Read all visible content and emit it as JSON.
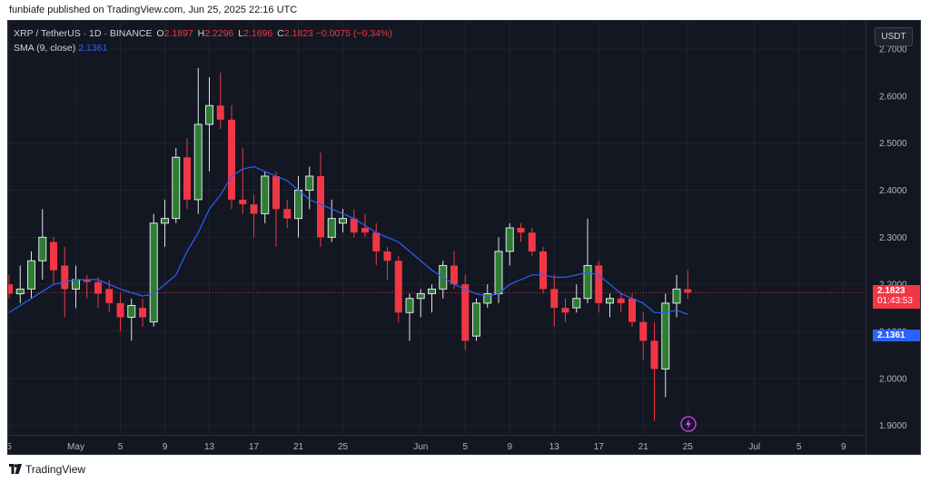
{
  "header": {
    "published": "funbiafe published on TradingView.com, Jun 25, 2025 22:16 UTC"
  },
  "legend": {
    "symbol": "XRP / TetherUS · 1D · BINANCE",
    "o_label": "O",
    "o_value": "2.1897",
    "h_label": "H",
    "h_value": "2.2296",
    "l_label": "L",
    "l_value": "2.1696",
    "c_label": "C",
    "c_value": "2.1823",
    "change": "−0.0075 (−0.34%)",
    "sma_label": "SMA (9, close)",
    "sma_value": "2.1361"
  },
  "currency_button": "USDT",
  "price_tags": {
    "last_price": "2.1823",
    "countdown": "01:43:53",
    "sma": "2.1361"
  },
  "footer": {
    "brand": "TradingView"
  },
  "colors": {
    "up": "#26a69a",
    "up_body": "#2e7d32",
    "down": "#f23645",
    "sma": "#2962ff",
    "background": "#131722"
  },
  "chart_data": {
    "type": "candlestick",
    "ylim": [
      1.88,
      2.76
    ],
    "y_ticks": [
      "2.7000",
      "2.6000",
      "2.5000",
      "2.4000",
      "2.3000",
      "2.2000",
      "2.1000",
      "2.0000",
      "1.9000"
    ],
    "y_tick_values": [
      2.7,
      2.6,
      2.5,
      2.4,
      2.3,
      2.2,
      2.1,
      2.0,
      1.9
    ],
    "x_ticks": [
      {
        "label": "5",
        "day": 0
      },
      {
        "label": "May",
        "day": 6
      },
      {
        "label": "5",
        "day": 10
      },
      {
        "label": "9",
        "day": 14
      },
      {
        "label": "13",
        "day": 18
      },
      {
        "label": "17",
        "day": 22
      },
      {
        "label": "21",
        "day": 26
      },
      {
        "label": "25",
        "day": 30
      },
      {
        "label": "Jun",
        "day": 37
      },
      {
        "label": "5",
        "day": 41
      },
      {
        "label": "9",
        "day": 45
      },
      {
        "label": "13",
        "day": 49
      },
      {
        "label": "17",
        "day": 53
      },
      {
        "label": "21",
        "day": 57
      },
      {
        "label": "25",
        "day": 61
      },
      {
        "label": "Jul",
        "day": 67
      },
      {
        "label": "5",
        "day": 71
      },
      {
        "label": "9",
        "day": 75
      }
    ],
    "candles": [
      {
        "day": 0,
        "o": 2.2,
        "h": 2.22,
        "l": 2.17,
        "c": 2.18
      },
      {
        "day": 1,
        "o": 2.18,
        "h": 2.24,
        "l": 2.16,
        "c": 2.19
      },
      {
        "day": 2,
        "o": 2.19,
        "h": 2.27,
        "l": 2.17,
        "c": 2.25
      },
      {
        "day": 3,
        "o": 2.25,
        "h": 2.36,
        "l": 2.21,
        "c": 2.3
      },
      {
        "day": 4,
        "o": 2.29,
        "h": 2.3,
        "l": 2.2,
        "c": 2.23
      },
      {
        "day": 5,
        "o": 2.24,
        "h": 2.28,
        "l": 2.13,
        "c": 2.19
      },
      {
        "day": 6,
        "o": 2.19,
        "h": 2.24,
        "l": 2.15,
        "c": 2.21
      },
      {
        "day": 7,
        "o": 2.21,
        "h": 2.22,
        "l": 2.17,
        "c": 2.205
      },
      {
        "day": 8,
        "o": 2.205,
        "h": 2.215,
        "l": 2.15,
        "c": 2.18
      },
      {
        "day": 9,
        "o": 2.19,
        "h": 2.21,
        "l": 2.14,
        "c": 2.16
      },
      {
        "day": 10,
        "o": 2.16,
        "h": 2.18,
        "l": 2.1,
        "c": 2.13
      },
      {
        "day": 11,
        "o": 2.13,
        "h": 2.17,
        "l": 2.08,
        "c": 2.155
      },
      {
        "day": 12,
        "o": 2.15,
        "h": 2.17,
        "l": 2.11,
        "c": 2.13
      },
      {
        "day": 13,
        "o": 2.12,
        "h": 2.35,
        "l": 2.11,
        "c": 2.33
      },
      {
        "day": 14,
        "o": 2.33,
        "h": 2.38,
        "l": 2.28,
        "c": 2.34
      },
      {
        "day": 15,
        "o": 2.34,
        "h": 2.49,
        "l": 2.33,
        "c": 2.47
      },
      {
        "day": 16,
        "o": 2.47,
        "h": 2.51,
        "l": 2.36,
        "c": 2.38
      },
      {
        "day": 17,
        "o": 2.38,
        "h": 2.66,
        "l": 2.35,
        "c": 2.54
      },
      {
        "day": 18,
        "o": 2.54,
        "h": 2.64,
        "l": 2.44,
        "c": 2.58
      },
      {
        "day": 19,
        "o": 2.58,
        "h": 2.65,
        "l": 2.53,
        "c": 2.55
      },
      {
        "day": 20,
        "o": 2.55,
        "h": 2.58,
        "l": 2.36,
        "c": 2.38
      },
      {
        "day": 21,
        "o": 2.38,
        "h": 2.49,
        "l": 2.35,
        "c": 2.37
      },
      {
        "day": 22,
        "o": 2.37,
        "h": 2.39,
        "l": 2.3,
        "c": 2.35
      },
      {
        "day": 23,
        "o": 2.35,
        "h": 2.44,
        "l": 2.33,
        "c": 2.43
      },
      {
        "day": 24,
        "o": 2.43,
        "h": 2.44,
        "l": 2.28,
        "c": 2.36
      },
      {
        "day": 25,
        "o": 2.36,
        "h": 2.38,
        "l": 2.32,
        "c": 2.34
      },
      {
        "day": 26,
        "o": 2.34,
        "h": 2.43,
        "l": 2.3,
        "c": 2.4
      },
      {
        "day": 27,
        "o": 2.4,
        "h": 2.45,
        "l": 2.36,
        "c": 2.43
      },
      {
        "day": 28,
        "o": 2.43,
        "h": 2.48,
        "l": 2.28,
        "c": 2.3
      },
      {
        "day": 29,
        "o": 2.3,
        "h": 2.38,
        "l": 2.29,
        "c": 2.34
      },
      {
        "day": 30,
        "o": 2.33,
        "h": 2.36,
        "l": 2.31,
        "c": 2.34
      },
      {
        "day": 31,
        "o": 2.34,
        "h": 2.36,
        "l": 2.3,
        "c": 2.31
      },
      {
        "day": 32,
        "o": 2.32,
        "h": 2.35,
        "l": 2.3,
        "c": 2.31
      },
      {
        "day": 33,
        "o": 2.31,
        "h": 2.33,
        "l": 2.24,
        "c": 2.27
      },
      {
        "day": 34,
        "o": 2.27,
        "h": 2.28,
        "l": 2.21,
        "c": 2.25
      },
      {
        "day": 35,
        "o": 2.25,
        "h": 2.26,
        "l": 2.12,
        "c": 2.14
      },
      {
        "day": 36,
        "o": 2.14,
        "h": 2.18,
        "l": 2.08,
        "c": 2.17
      },
      {
        "day": 37,
        "o": 2.17,
        "h": 2.19,
        "l": 2.13,
        "c": 2.18
      },
      {
        "day": 38,
        "o": 2.18,
        "h": 2.2,
        "l": 2.14,
        "c": 2.19
      },
      {
        "day": 39,
        "o": 2.19,
        "h": 2.25,
        "l": 2.17,
        "c": 2.24
      },
      {
        "day": 40,
        "o": 2.24,
        "h": 2.27,
        "l": 2.19,
        "c": 2.2
      },
      {
        "day": 41,
        "o": 2.2,
        "h": 2.22,
        "l": 2.06,
        "c": 2.08
      },
      {
        "day": 42,
        "o": 2.09,
        "h": 2.17,
        "l": 2.08,
        "c": 2.16
      },
      {
        "day": 43,
        "o": 2.16,
        "h": 2.2,
        "l": 2.15,
        "c": 2.18
      },
      {
        "day": 44,
        "o": 2.18,
        "h": 2.3,
        "l": 2.16,
        "c": 2.27
      },
      {
        "day": 45,
        "o": 2.27,
        "h": 2.33,
        "l": 2.24,
        "c": 2.32
      },
      {
        "day": 46,
        "o": 2.32,
        "h": 2.33,
        "l": 2.29,
        "c": 2.31
      },
      {
        "day": 47,
        "o": 2.31,
        "h": 2.32,
        "l": 2.26,
        "c": 2.27
      },
      {
        "day": 48,
        "o": 2.27,
        "h": 2.28,
        "l": 2.18,
        "c": 2.19
      },
      {
        "day": 49,
        "o": 2.19,
        "h": 2.22,
        "l": 2.11,
        "c": 2.15
      },
      {
        "day": 50,
        "o": 2.15,
        "h": 2.17,
        "l": 2.12,
        "c": 2.14
      },
      {
        "day": 51,
        "o": 2.15,
        "h": 2.2,
        "l": 2.14,
        "c": 2.17
      },
      {
        "day": 52,
        "o": 2.17,
        "h": 2.34,
        "l": 2.16,
        "c": 2.24
      },
      {
        "day": 53,
        "o": 2.24,
        "h": 2.25,
        "l": 2.14,
        "c": 2.16
      },
      {
        "day": 54,
        "o": 2.16,
        "h": 2.18,
        "l": 2.13,
        "c": 2.17
      },
      {
        "day": 55,
        "o": 2.17,
        "h": 2.18,
        "l": 2.14,
        "c": 2.16
      },
      {
        "day": 56,
        "o": 2.17,
        "h": 2.18,
        "l": 2.11,
        "c": 2.12
      },
      {
        "day": 57,
        "o": 2.12,
        "h": 2.14,
        "l": 2.04,
        "c": 2.08
      },
      {
        "day": 58,
        "o": 2.08,
        "h": 2.12,
        "l": 1.91,
        "c": 2.02
      },
      {
        "day": 59,
        "o": 2.02,
        "h": 2.18,
        "l": 1.96,
        "c": 2.16
      },
      {
        "day": 60,
        "o": 2.16,
        "h": 2.22,
        "l": 2.13,
        "c": 2.19
      },
      {
        "day": 61,
        "o": 2.1897,
        "h": 2.2296,
        "l": 2.1696,
        "c": 2.1823
      }
    ],
    "sma": {
      "name": "SMA (9, close)",
      "points": [
        {
          "day": 0,
          "v": 2.14
        },
        {
          "day": 2,
          "v": 2.17
        },
        {
          "day": 4,
          "v": 2.2
        },
        {
          "day": 6,
          "v": 2.21
        },
        {
          "day": 8,
          "v": 2.21
        },
        {
          "day": 10,
          "v": 2.19
        },
        {
          "day": 12,
          "v": 2.175
        },
        {
          "day": 13,
          "v": 2.18
        },
        {
          "day": 14,
          "v": 2.2
        },
        {
          "day": 15,
          "v": 2.22
        },
        {
          "day": 16,
          "v": 2.27
        },
        {
          "day": 17,
          "v": 2.31
        },
        {
          "day": 18,
          "v": 2.36
        },
        {
          "day": 19,
          "v": 2.39
        },
        {
          "day": 20,
          "v": 2.43
        },
        {
          "day": 21,
          "v": 2.445
        },
        {
          "day": 22,
          "v": 2.45
        },
        {
          "day": 23,
          "v": 2.44
        },
        {
          "day": 24,
          "v": 2.43
        },
        {
          "day": 25,
          "v": 2.42
        },
        {
          "day": 26,
          "v": 2.4
        },
        {
          "day": 27,
          "v": 2.38
        },
        {
          "day": 28,
          "v": 2.37
        },
        {
          "day": 29,
          "v": 2.36
        },
        {
          "day": 30,
          "v": 2.35
        },
        {
          "day": 31,
          "v": 2.34
        },
        {
          "day": 32,
          "v": 2.325
        },
        {
          "day": 33,
          "v": 2.31
        },
        {
          "day": 34,
          "v": 2.3
        },
        {
          "day": 35,
          "v": 2.29
        },
        {
          "day": 36,
          "v": 2.27
        },
        {
          "day": 37,
          "v": 2.25
        },
        {
          "day": 38,
          "v": 2.23
        },
        {
          "day": 39,
          "v": 2.215
        },
        {
          "day": 40,
          "v": 2.2
        },
        {
          "day": 41,
          "v": 2.19
        },
        {
          "day": 42,
          "v": 2.18
        },
        {
          "day": 43,
          "v": 2.175
        },
        {
          "day": 44,
          "v": 2.18
        },
        {
          "day": 45,
          "v": 2.2
        },
        {
          "day": 46,
          "v": 2.21
        },
        {
          "day": 47,
          "v": 2.22
        },
        {
          "day": 48,
          "v": 2.22
        },
        {
          "day": 49,
          "v": 2.215
        },
        {
          "day": 50,
          "v": 2.215
        },
        {
          "day": 51,
          "v": 2.22
        },
        {
          "day": 52,
          "v": 2.225
        },
        {
          "day": 53,
          "v": 2.22
        },
        {
          "day": 54,
          "v": 2.2
        },
        {
          "day": 55,
          "v": 2.18
        },
        {
          "day": 56,
          "v": 2.17
        },
        {
          "day": 57,
          "v": 2.16
        },
        {
          "day": 58,
          "v": 2.14
        },
        {
          "day": 59,
          "v": 2.14
        },
        {
          "day": 60,
          "v": 2.145
        },
        {
          "day": 61,
          "v": 2.1361
        }
      ]
    },
    "last_price": 2.1823
  }
}
